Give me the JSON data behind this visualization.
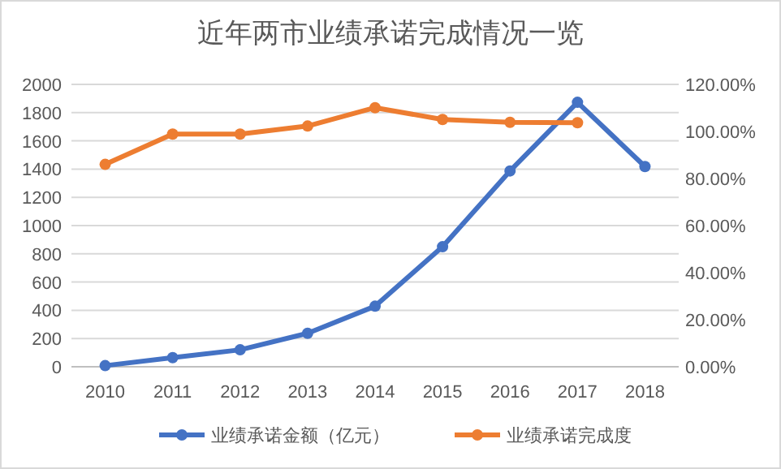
{
  "chart_data": {
    "type": "line",
    "title": "近年两市业绩承诺完成情况一览",
    "categories": [
      "2010",
      "2011",
      "2012",
      "2013",
      "2014",
      "2015",
      "2016",
      "2017",
      "2018"
    ],
    "series": [
      {
        "name": "业绩承诺金额（亿元）",
        "color": "#4472c4",
        "values": [
          8,
          65,
          120,
          237,
          429,
          850,
          1387,
          1873,
          1418
        ]
      },
      {
        "name": "业绩承诺完成度",
        "color": "#ed7d31",
        "axis": "y2",
        "values": [
          86.0,
          98.9,
          98.9,
          102.3,
          110.1,
          105.1,
          103.9,
          103.7,
          null
        ]
      }
    ],
    "ylim": [
      0,
      2000
    ],
    "yticks": [
      0,
      200,
      400,
      600,
      800,
      1000,
      1200,
      1400,
      1600,
      1800,
      2000
    ],
    "y2lim": [
      0,
      120
    ],
    "y2ticks": [
      {
        "value": 0,
        "label": "0.00%"
      },
      {
        "value": 20,
        "label": "20.00%"
      },
      {
        "value": 40,
        "label": "40.00%"
      },
      {
        "value": 60,
        "label": "60.00%"
      },
      {
        "value": 80,
        "label": "80.00%"
      },
      {
        "value": 100,
        "label": "100.00%"
      },
      {
        "value": 120,
        "label": "120.00%"
      }
    ],
    "grid": "y",
    "legend": "bottom",
    "marker": "circle",
    "line_style": "solid"
  }
}
